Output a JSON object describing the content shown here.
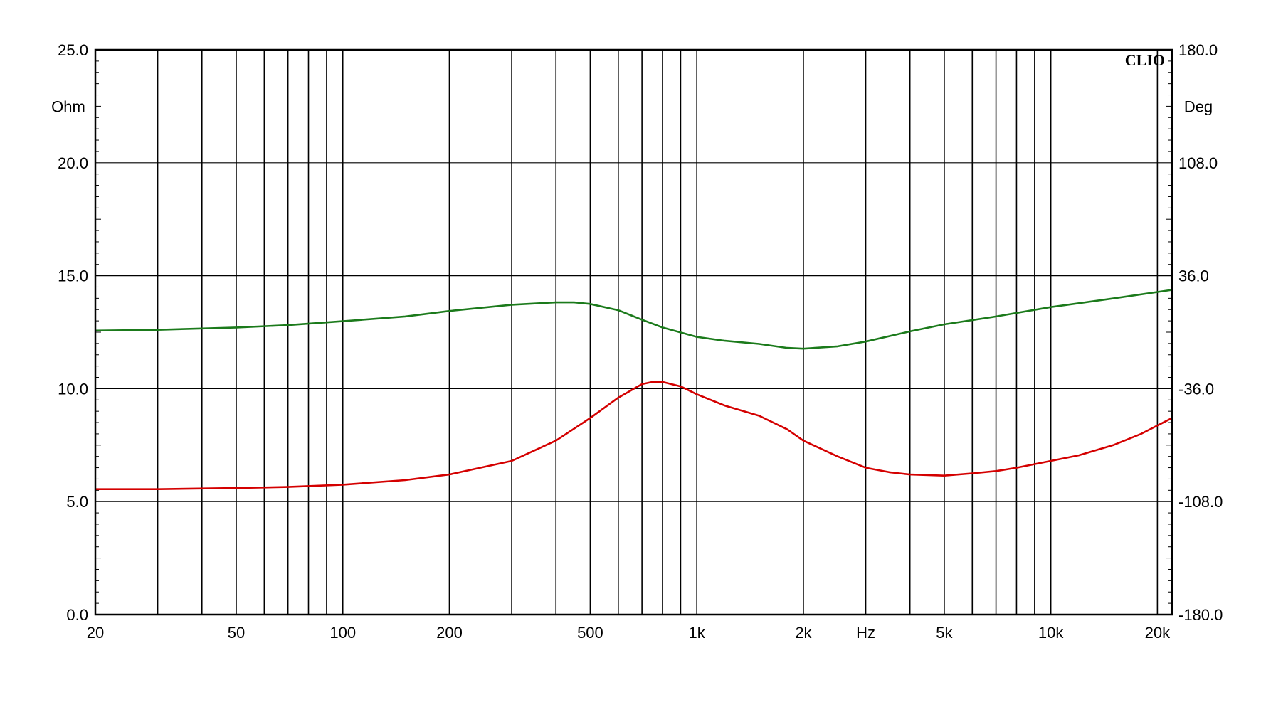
{
  "chart_data": {
    "type": "line",
    "brand": "CLIO",
    "left_axis": {
      "unit_label": "Ohm",
      "ylim": [
        0,
        25
      ],
      "ticks": [
        {
          "value": 0,
          "label": "0.0"
        },
        {
          "value": 5,
          "label": "5.0"
        },
        {
          "value": 10,
          "label": "10.0"
        },
        {
          "value": 15,
          "label": "15.0"
        },
        {
          "value": 20,
          "label": "20.0"
        },
        {
          "value": 25,
          "label": "25.0"
        }
      ]
    },
    "right_axis": {
      "unit_label": "Deg",
      "ylim": [
        -180,
        180
      ],
      "ticks": [
        {
          "value": -180,
          "label": "-180.0"
        },
        {
          "value": -108,
          "label": "-108.0"
        },
        {
          "value": -36,
          "label": "-36.0"
        },
        {
          "value": 36,
          "label": "36.0"
        },
        {
          "value": 108,
          "label": "108.0"
        },
        {
          "value": 180,
          "label": "180.0"
        }
      ]
    },
    "x_axis": {
      "scale": "log",
      "xlim": [
        20,
        22000
      ],
      "unit_label": "Hz",
      "unit_label_position": 3000,
      "ticks": [
        {
          "value": 20,
          "label": "20"
        },
        {
          "value": 50,
          "label": "50"
        },
        {
          "value": 100,
          "label": "100"
        },
        {
          "value": 200,
          "label": "200"
        },
        {
          "value": 500,
          "label": "500"
        },
        {
          "value": 1000,
          "label": "1k"
        },
        {
          "value": 2000,
          "label": "2k"
        },
        {
          "value": 5000,
          "label": "5k"
        },
        {
          "value": 10000,
          "label": "10k"
        },
        {
          "value": 20000,
          "label": "20k"
        }
      ]
    },
    "grid": true,
    "series": [
      {
        "axis": "left",
        "color": "#d40000",
        "points": [
          [
            20,
            5.55
          ],
          [
            30,
            5.55
          ],
          [
            50,
            5.6
          ],
          [
            70,
            5.65
          ],
          [
            100,
            5.75
          ],
          [
            150,
            5.95
          ],
          [
            200,
            6.2
          ],
          [
            300,
            6.8
          ],
          [
            400,
            7.7
          ],
          [
            500,
            8.7
          ],
          [
            600,
            9.6
          ],
          [
            700,
            10.2
          ],
          [
            750,
            10.3
          ],
          [
            800,
            10.3
          ],
          [
            900,
            10.1
          ],
          [
            1000,
            9.75
          ],
          [
            1200,
            9.25
          ],
          [
            1500,
            8.8
          ],
          [
            1800,
            8.2
          ],
          [
            2000,
            7.7
          ],
          [
            2500,
            7.0
          ],
          [
            3000,
            6.5
          ],
          [
            3500,
            6.3
          ],
          [
            4000,
            6.2
          ],
          [
            5000,
            6.15
          ],
          [
            6000,
            6.25
          ],
          [
            7000,
            6.35
          ],
          [
            8000,
            6.5
          ],
          [
            10000,
            6.8
          ],
          [
            12000,
            7.05
          ],
          [
            15000,
            7.5
          ],
          [
            18000,
            8.0
          ],
          [
            22000,
            8.7
          ]
        ]
      },
      {
        "axis": "right",
        "color": "#1b7a1b",
        "points": [
          [
            20,
            1
          ],
          [
            30,
            1.5
          ],
          [
            50,
            3
          ],
          [
            70,
            4.5
          ],
          [
            100,
            7
          ],
          [
            150,
            10
          ],
          [
            200,
            13.5
          ],
          [
            300,
            17.5
          ],
          [
            400,
            19
          ],
          [
            450,
            19
          ],
          [
            500,
            18
          ],
          [
            600,
            14
          ],
          [
            700,
            8
          ],
          [
            800,
            3
          ],
          [
            1000,
            -3
          ],
          [
            1200,
            -5.5
          ],
          [
            1500,
            -7.5
          ],
          [
            1800,
            -10
          ],
          [
            2000,
            -10.5
          ],
          [
            2500,
            -9
          ],
          [
            3000,
            -6
          ],
          [
            4000,
            0.5
          ],
          [
            5000,
            5
          ],
          [
            7000,
            10
          ],
          [
            10000,
            16
          ],
          [
            15000,
            21.5
          ],
          [
            22000,
            27
          ]
        ]
      }
    ]
  }
}
